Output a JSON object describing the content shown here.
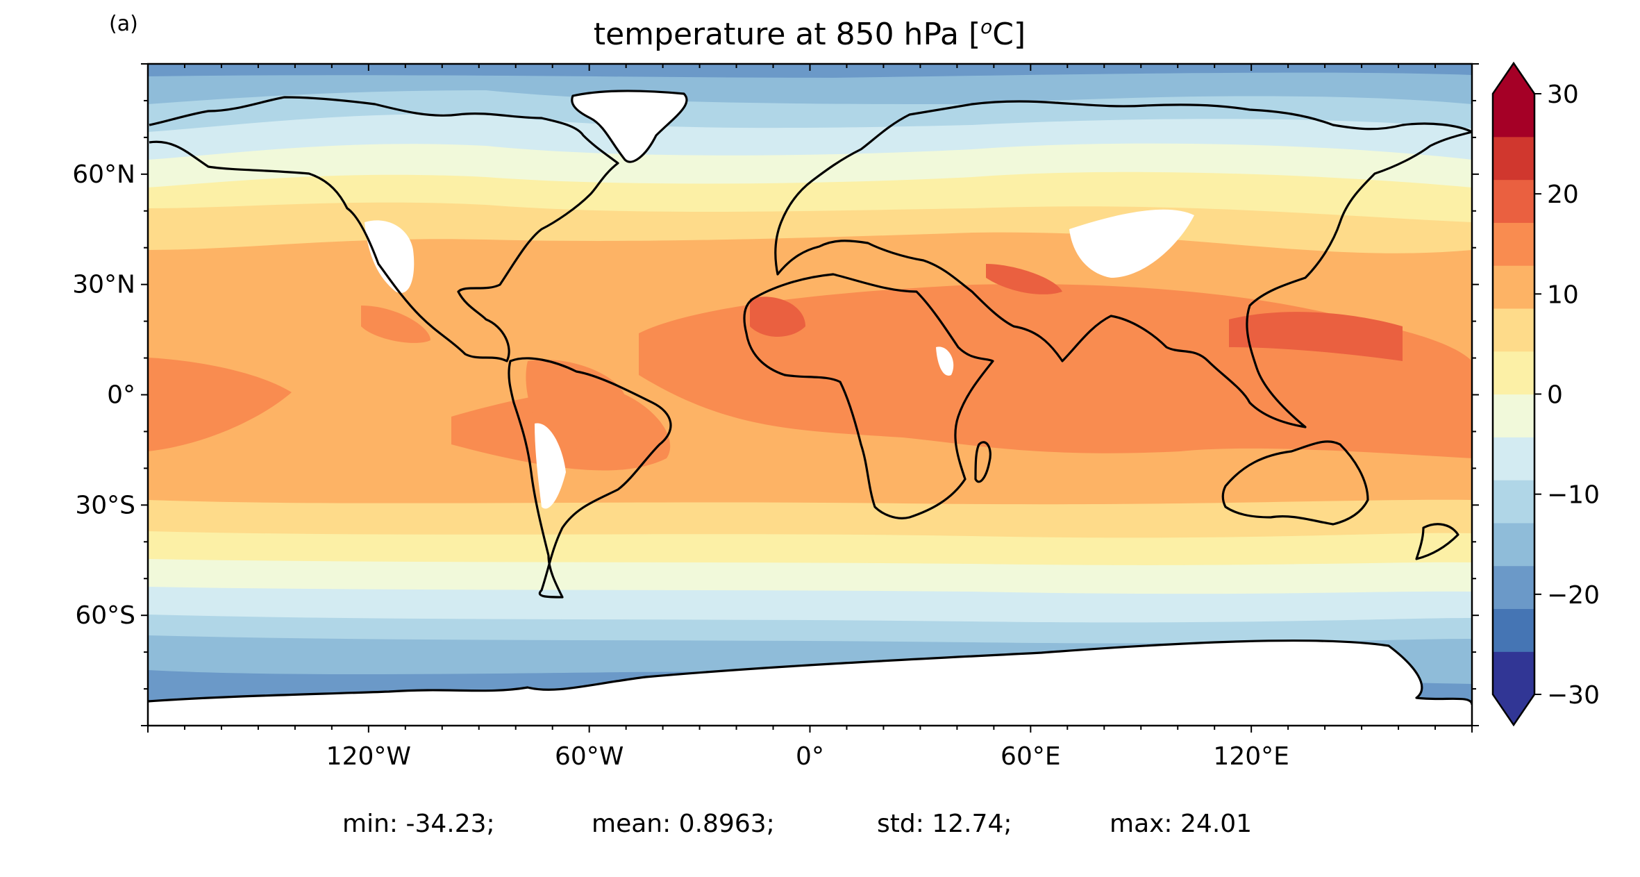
{
  "panel_label": "(a)",
  "title": {
    "prefix": "temperature at 850 hPa [",
    "sup": "o",
    "suffix": "C]"
  },
  "map": {
    "projection": "PlateCarree",
    "extent": {
      "lon": [
        -180,
        180
      ],
      "lat": [
        -90,
        90
      ]
    },
    "lon_ticks": [
      {
        "value": -120,
        "label": "120°W"
      },
      {
        "value": -60,
        "label": "60°W"
      },
      {
        "value": 0,
        "label": "0°"
      },
      {
        "value": 60,
        "label": "60°E"
      },
      {
        "value": 120,
        "label": "120°E"
      }
    ],
    "lat_ticks": [
      {
        "value": 60,
        "label": "60°N"
      },
      {
        "value": 30,
        "label": "30°N"
      },
      {
        "value": 0,
        "label": "0°"
      },
      {
        "value": -30,
        "label": "30°S"
      },
      {
        "value": -60,
        "label": "60°S"
      }
    ],
    "coastlines": true
  },
  "colorbar": {
    "extend": "both",
    "min": -30,
    "max": 30,
    "step": 5,
    "tick_labels": [
      {
        "value": 30,
        "label": "30"
      },
      {
        "value": 20,
        "label": "20"
      },
      {
        "value": 10,
        "label": "10"
      },
      {
        "value": 0,
        "label": "0"
      },
      {
        "value": -10,
        "label": "−10"
      },
      {
        "value": -20,
        "label": "−20"
      },
      {
        "value": -30,
        "label": "−30"
      }
    ],
    "colors": [
      "#313695",
      "#4575b4",
      "#6b99c8",
      "#8fbcd9",
      "#b0d6e7",
      "#d3ebf2",
      "#f1f9da",
      "#fcf0a6",
      "#fedb8a",
      "#fdb365",
      "#f98c50",
      "#ea6040",
      "#d0372e",
      "#a50026"
    ],
    "under_color": "#313695",
    "over_color": "#a50026"
  },
  "stats": {
    "min": "min: -34.23;",
    "mean": "mean: 0.8963;",
    "std": "std: 12.74;",
    "max": "max: 24.01"
  }
}
